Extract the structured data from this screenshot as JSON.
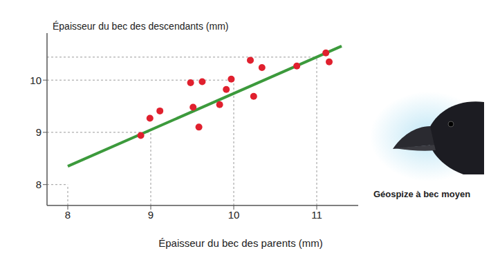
{
  "chart_data": {
    "type": "scatter",
    "x_label": "Épaisseur du bec des parents (mm)",
    "y_label": "Épaisseur du bec des descendants (mm)",
    "annotation": "Géospize à bec moyen",
    "x": [
      8.88,
      8.99,
      9.11,
      9.48,
      9.51,
      9.62,
      9.58,
      9.83,
      9.91,
      9.97,
      10.2,
      10.24,
      10.34,
      10.76,
      11.11,
      11.15
    ],
    "values": [
      8.94,
      9.27,
      9.41,
      9.95,
      9.48,
      9.97,
      9.1,
      9.53,
      9.82,
      10.02,
      10.38,
      9.69,
      10.24,
      10.27,
      10.52,
      10.35
    ],
    "color": "#e0202e",
    "marker": "circle",
    "trend_line": {
      "x": [
        8,
        11.3
      ],
      "values": [
        8.35,
        10.65
      ],
      "color": "#3c9a3c"
    },
    "guides": [
      {
        "x": 8,
        "y": 8
      },
      {
        "x": 9,
        "y": 9
      },
      {
        "x": 10,
        "y": 10
      },
      {
        "x": 11,
        "y": 10.44
      }
    ],
    "xlim": [
      7.75,
      11.5
    ],
    "ylim": [
      7.6,
      10.9
    ],
    "xticks": [
      8,
      9,
      10,
      11
    ],
    "yticks": [
      8,
      9,
      10
    ],
    "grid": false
  }
}
